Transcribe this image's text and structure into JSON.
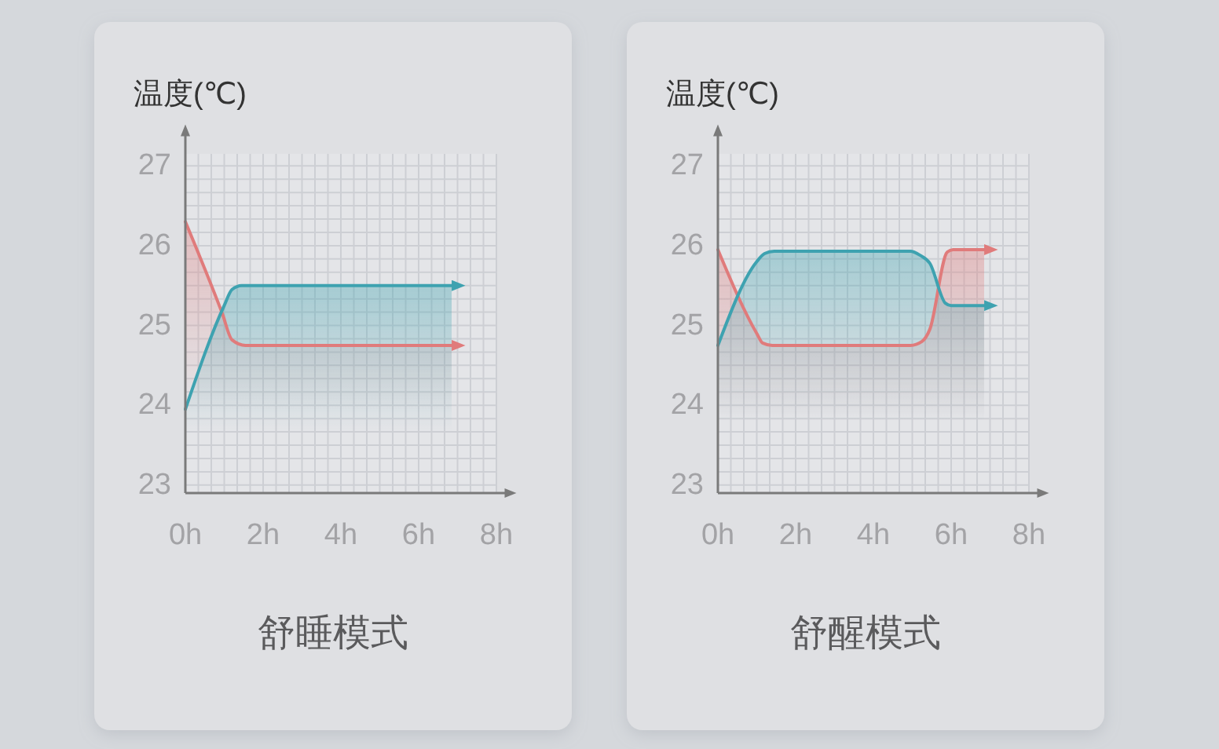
{
  "chart_data": [
    {
      "type": "area",
      "title": "舒睡模式",
      "ylabel": "温度(℃)",
      "xlim": [
        0,
        8
      ],
      "ylim": [
        22.9,
        27.15
      ],
      "xticks": [
        {
          "value": 0,
          "label": "0h"
        },
        {
          "value": 2,
          "label": "2h"
        },
        {
          "value": 4,
          "label": "4h"
        },
        {
          "value": 6,
          "label": "6h"
        },
        {
          "value": 8,
          "label": "8h"
        }
      ],
      "yticks": [
        23,
        24,
        25,
        26,
        27
      ],
      "grid": true,
      "series": [
        {
          "color": "#e07b7b",
          "x": [
            0,
            0.95,
            1.2,
            1.55,
            6.85
          ],
          "values": [
            26.3,
            25.15,
            24.82,
            24.75,
            24.75
          ]
        },
        {
          "color": "#3ea2b0",
          "x": [
            0,
            1.0,
            1.2,
            1.45,
            6.85
          ],
          "values": [
            23.95,
            25.25,
            25.45,
            25.5,
            25.5
          ]
        }
      ]
    },
    {
      "type": "area",
      "title": "舒醒模式",
      "ylabel": "温度(℃)",
      "xlim": [
        0,
        8
      ],
      "ylim": [
        22.9,
        27.15
      ],
      "xticks": [
        {
          "value": 0,
          "label": "0h"
        },
        {
          "value": 2,
          "label": "2h"
        },
        {
          "value": 4,
          "label": "4h"
        },
        {
          "value": 6,
          "label": "6h"
        },
        {
          "value": 8,
          "label": "8h"
        }
      ],
      "yticks": [
        23,
        24,
        25,
        26,
        27
      ],
      "grid": true,
      "series": [
        {
          "color": "#e07b7b",
          "x": [
            0,
            1.0,
            1.15,
            1.4,
            4.95,
            5.25,
            5.45,
            5.9,
            6.05,
            6.85
          ],
          "values": [
            25.95,
            24.9,
            24.78,
            24.75,
            24.75,
            24.8,
            24.95,
            25.92,
            25.95,
            25.95
          ]
        },
        {
          "color": "#3ea2b0",
          "x": [
            0,
            1.0,
            1.2,
            1.45,
            4.95,
            5.2,
            5.45,
            5.85,
            6.0,
            6.85
          ],
          "values": [
            24.75,
            25.8,
            25.9,
            25.93,
            25.93,
            25.88,
            25.78,
            25.28,
            25.25,
            25.25
          ]
        }
      ]
    }
  ]
}
